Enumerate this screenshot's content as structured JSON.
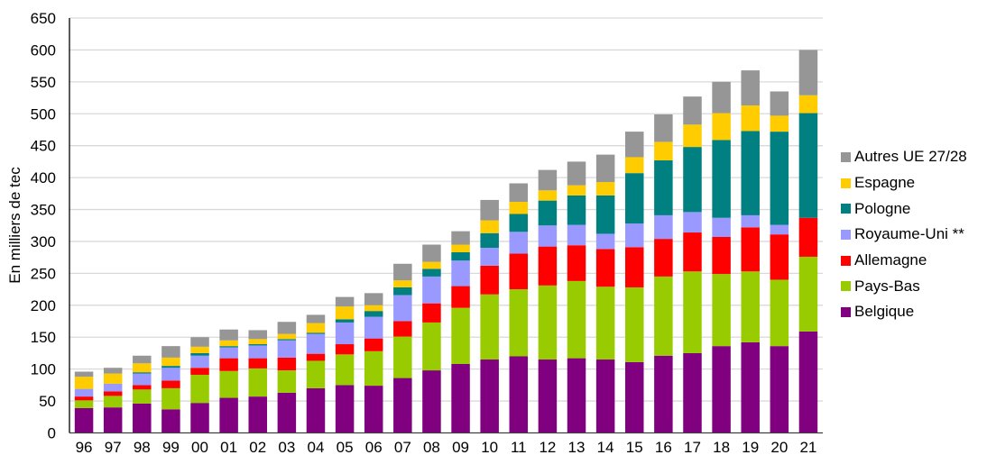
{
  "chart_data": {
    "type": "bar",
    "stacked": true,
    "title": "",
    "xlabel": "",
    "ylabel": "En milliers de tec",
    "ylim": [
      0,
      650
    ],
    "yticks": [
      0,
      50,
      100,
      150,
      200,
      250,
      300,
      350,
      400,
      450,
      500,
      550,
      600,
      650
    ],
    "grid": true,
    "legend_position": "right",
    "categories": [
      "96",
      "97",
      "98",
      "99",
      "00",
      "01",
      "02",
      "03",
      "04",
      "05",
      "06",
      "07",
      "08",
      "09",
      "10",
      "11",
      "12",
      "13",
      "14",
      "15",
      "16",
      "17",
      "18",
      "19",
      "20",
      "21"
    ],
    "series": [
      {
        "name": "Belgique",
        "color": "#800080",
        "values": [
          39,
          40,
          46,
          37,
          47,
          55,
          57,
          63,
          70,
          75,
          74,
          86,
          98,
          108,
          115,
          120,
          115,
          117,
          115,
          111,
          121,
          125,
          136,
          142,
          136,
          159
        ]
      },
      {
        "name": "Pays-Bas",
        "color": "#99CC00",
        "values": [
          12,
          18,
          22,
          33,
          44,
          42,
          44,
          35,
          43,
          48,
          54,
          65,
          75,
          88,
          102,
          105,
          116,
          121,
          114,
          117,
          124,
          128,
          113,
          111,
          104,
          117
        ]
      },
      {
        "name": "Allemagne",
        "color": "#FF0000",
        "values": [
          6,
          7,
          7,
          12,
          11,
          20,
          16,
          20,
          11,
          16,
          20,
          24,
          30,
          34,
          45,
          56,
          61,
          56,
          59,
          63,
          59,
          61,
          58,
          69,
          71,
          61
        ]
      },
      {
        "name": "Royaume-Uni **",
        "color": "#9999FF",
        "values": [
          12,
          12,
          18,
          20,
          19,
          17,
          20,
          27,
          31,
          34,
          34,
          41,
          42,
          40,
          28,
          34,
          33,
          32,
          24,
          37,
          37,
          32,
          30,
          19,
          15,
          0
        ]
      },
      {
        "name": "Pologne",
        "color": "#008080",
        "values": [
          0,
          0,
          2,
          3,
          4,
          2,
          2,
          2,
          2,
          5,
          9,
          12,
          12,
          13,
          23,
          28,
          39,
          46,
          60,
          79,
          86,
          102,
          122,
          132,
          146,
          164
        ]
      },
      {
        "name": "Espagne",
        "color": "#FFCC00",
        "values": [
          19,
          16,
          14,
          13,
          10,
          9,
          8,
          8,
          15,
          20,
          9,
          11,
          11,
          12,
          20,
          19,
          16,
          16,
          21,
          25,
          29,
          35,
          42,
          40,
          25,
          28
        ]
      },
      {
        "name": "Autres UE 27/28",
        "color": "#969696",
        "values": [
          8,
          9,
          12,
          18,
          15,
          17,
          14,
          19,
          13,
          15,
          19,
          26,
          27,
          21,
          32,
          29,
          32,
          37,
          43,
          40,
          43,
          44,
          49,
          55,
          38,
          71
        ]
      }
    ],
    "legend_order": [
      "Autres UE 27/28",
      "Espagne",
      "Pologne",
      "Royaume-Uni **",
      "Allemagne",
      "Pays-Bas",
      "Belgique"
    ]
  },
  "colors": {
    "gridline": "#D9D9D9",
    "axis": "#000000"
  }
}
